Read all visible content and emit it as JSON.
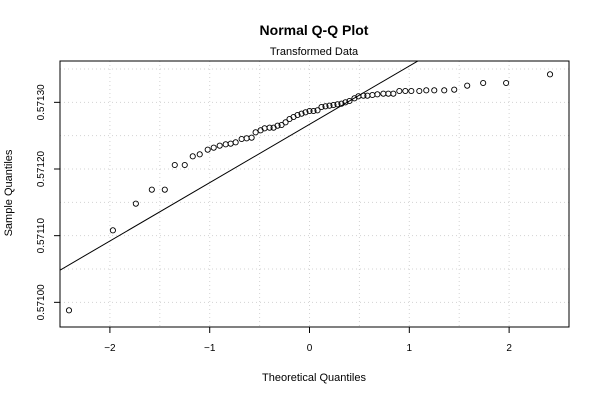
{
  "chart_data": {
    "type": "scatter",
    "title": "Normal Q-Q Plot",
    "subtitle": "Transformed Data",
    "xlabel": "Theoretical Quantiles",
    "ylabel": "Sample Quantiles",
    "xlim": [
      -2.5,
      2.6
    ],
    "ylim": [
      0.570963,
      0.571362
    ],
    "x_ticks": [
      -2,
      -1,
      0,
      1,
      2
    ],
    "x_tick_labels": [
      "−2",
      "−1",
      "0",
      "1",
      "2"
    ],
    "y_ticks": [
      0.571,
      0.5711,
      0.5712,
      0.5713
    ],
    "y_tick_labels": [
      "0.57100",
      "0.57110",
      "0.57120",
      "0.57130"
    ],
    "grid": true,
    "reference_line": {
      "slope": 8.75e-05,
      "intercept": 0.571267
    },
    "points": {
      "x": [
        -2.41,
        -1.97,
        -1.74,
        -1.58,
        -1.45,
        -1.35,
        -1.25,
        -1.17,
        -1.1,
        -1.02,
        -0.96,
        -0.9,
        -0.84,
        -0.79,
        -0.74,
        -0.68,
        -0.63,
        -0.58,
        -0.54,
        -0.49,
        -0.45,
        -0.4,
        -0.36,
        -0.32,
        -0.28,
        -0.24,
        -0.2,
        -0.16,
        -0.12,
        -0.08,
        -0.04,
        0.0,
        0.04,
        0.08,
        0.12,
        0.16,
        0.2,
        0.24,
        0.28,
        0.32,
        0.36,
        0.4,
        0.45,
        0.49,
        0.54,
        0.58,
        0.63,
        0.68,
        0.74,
        0.79,
        0.84,
        0.9,
        0.96,
        1.02,
        1.1,
        1.17,
        1.25,
        1.35,
        1.45,
        1.58,
        1.74,
        1.97,
        2.41
      ],
      "y": [
        0.570988,
        0.571108,
        0.571148,
        0.571169,
        0.571169,
        0.571206,
        0.571206,
        0.571219,
        0.571222,
        0.571229,
        0.571232,
        0.571235,
        0.571237,
        0.571238,
        0.57124,
        0.571245,
        0.571246,
        0.571247,
        0.571255,
        0.571258,
        0.571261,
        0.571262,
        0.571262,
        0.571265,
        0.571266,
        0.57127,
        0.571275,
        0.571278,
        0.571281,
        0.571283,
        0.571285,
        0.571287,
        0.571287,
        0.571288,
        0.571293,
        0.571294,
        0.571295,
        0.571296,
        0.571297,
        0.571298,
        0.5713,
        0.571302,
        0.571306,
        0.571309,
        0.57131,
        0.57131,
        0.571311,
        0.571312,
        0.571313,
        0.571313,
        0.571313,
        0.571317,
        0.571317,
        0.571317,
        0.571317,
        0.571318,
        0.571318,
        0.571318,
        0.571319,
        0.571325,
        0.571329,
        0.571329,
        0.571342
      ]
    },
    "colors": {
      "points": "#000000",
      "line": "#000000",
      "grid": "#d3d3d3"
    }
  }
}
